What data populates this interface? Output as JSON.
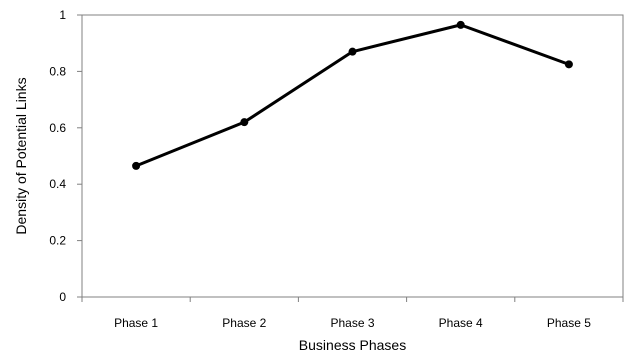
{
  "chart_data": {
    "type": "line",
    "title": "",
    "xlabel": "Business Phases",
    "ylabel": "Density of Potential Links",
    "categories": [
      "Phase 1",
      "Phase 2",
      "Phase 3",
      "Phase 4",
      "Phase 5"
    ],
    "series": [
      {
        "values": [
          0.465,
          0.62,
          0.87,
          0.965,
          0.825
        ]
      }
    ],
    "ylim": [
      0,
      1
    ],
    "yticks": [
      0,
      0.2,
      0.4,
      0.6,
      0.8,
      1
    ],
    "ytick_labels": [
      "0",
      "0.2",
      "0.4",
      "0.6",
      "0.8",
      "1"
    ],
    "grid": true,
    "legend": "none",
    "colors": {
      "line": "#000000",
      "marker": "#000000",
      "grid": "#c8c8c8",
      "axis": "#808080"
    }
  }
}
